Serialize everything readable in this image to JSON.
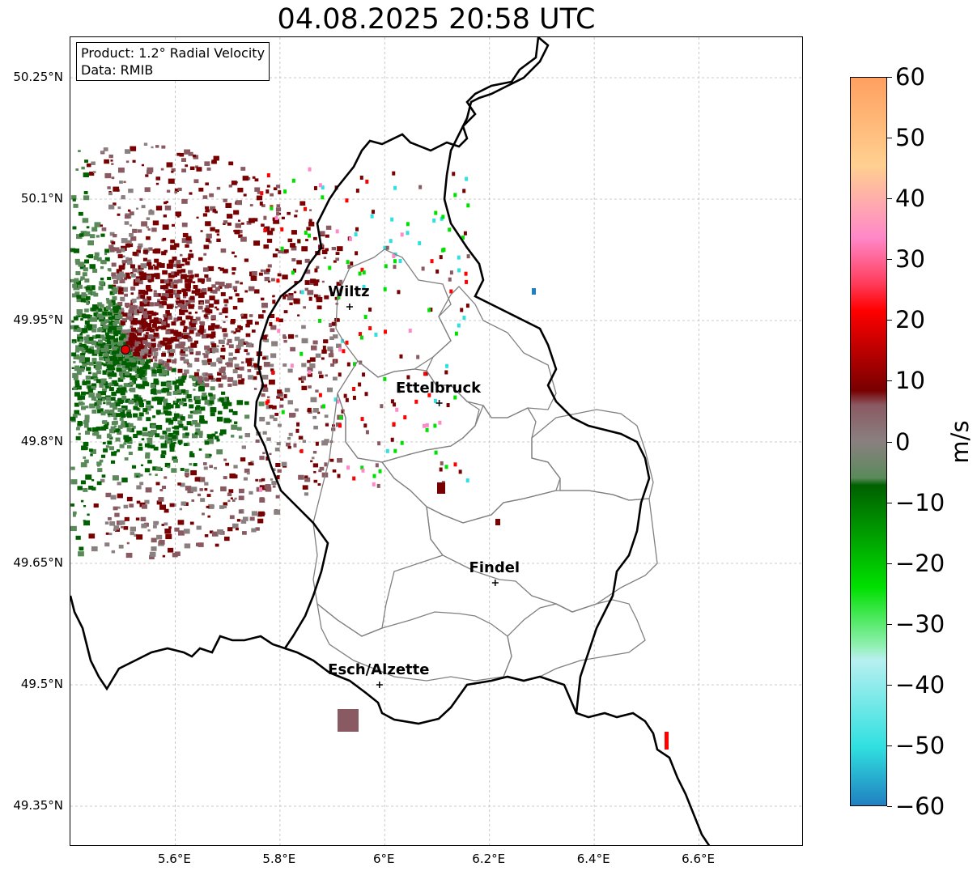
{
  "title": "04.08.2025 20:58 UTC",
  "info": {
    "product": "Product: 1.2° Radial Velocity",
    "source": "Data: RMIB"
  },
  "map": {
    "lat_labels": [
      "50.25°N",
      "50.1°N",
      "49.95°N",
      "49.8°N",
      "49.65°N",
      "49.5°N",
      "49.35°N"
    ],
    "lat_values": [
      50.25,
      50.1,
      49.95,
      49.8,
      49.65,
      49.5,
      49.35
    ],
    "lon_labels": [
      "5.6°E",
      "5.8°E",
      "6°E",
      "6.2°E",
      "6.4°E",
      "6.6°E"
    ],
    "lon_values": [
      5.6,
      5.8,
      6.0,
      6.2,
      6.4,
      6.6
    ],
    "lat_range": [
      49.3,
      50.3
    ],
    "lon_range": [
      5.4,
      6.8
    ],
    "cities": [
      {
        "name": "Wiltz",
        "lon": 5.933,
        "lat": 49.967
      },
      {
        "name": "Ettelbruck",
        "lon": 6.104,
        "lat": 49.848
      },
      {
        "name": "Findel",
        "lon": 6.211,
        "lat": 49.626
      },
      {
        "name": "Esch/Alzette",
        "lon": 5.99,
        "lat": 49.5
      }
    ],
    "radar_site": {
      "lon": 5.505,
      "lat": 49.914
    }
  },
  "colorbar": {
    "unit": "m/s",
    "ticks": [
      "60",
      "50",
      "40",
      "30",
      "20",
      "10",
      "0",
      "−10",
      "−20",
      "−30",
      "−40",
      "−50",
      "−60"
    ],
    "tick_values": [
      60,
      50,
      40,
      30,
      20,
      10,
      0,
      -10,
      -20,
      -30,
      -40,
      -50,
      -60
    ],
    "range": [
      -60,
      60
    ],
    "colors": {
      "top": "#ffa060",
      "orange_light": "#ffd090",
      "pink": "#ff88c8",
      "red_light": "#ff4060",
      "red": "#ff0000",
      "dark_red": "#780000",
      "brown_grey": "#8a5a62",
      "grey": "#8a8080",
      "grey_green": "#5a8a5a",
      "dark_green": "#006000",
      "green": "#00e000",
      "light_green": "#90f0b0",
      "cyan_light": "#b8f0f0",
      "cyan": "#30e0e0",
      "blue": "#2080c0"
    }
  }
}
